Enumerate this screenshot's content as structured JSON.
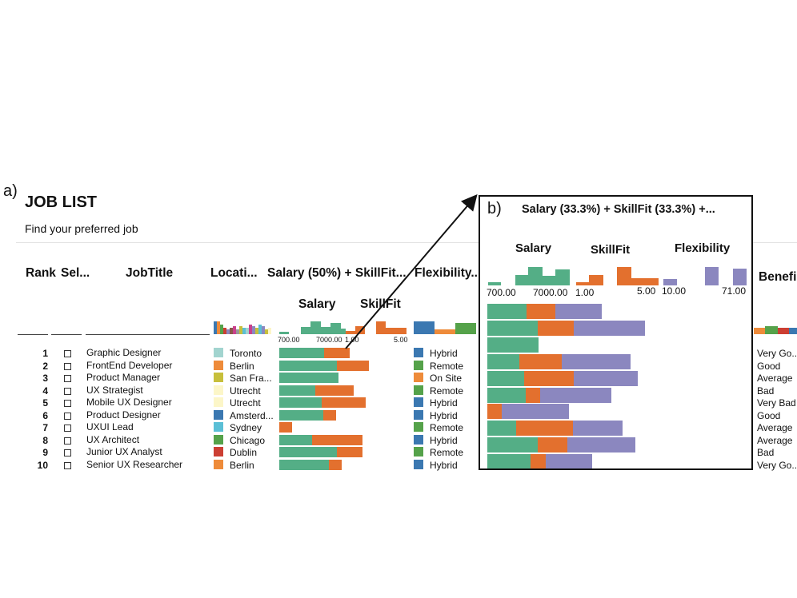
{
  "panel_a": "a)",
  "panel_b": "b)",
  "title": "JOB LIST",
  "subtitle": "Find your preferred job",
  "columns": {
    "rank": "Rank",
    "select": "Sel...",
    "jobtitle": "JobTitle",
    "location": "Locati...",
    "score": "Salary (50%) + SkillFit...",
    "flexibility": "Flexibility...",
    "benefits": "Benefi"
  },
  "sub_labels": {
    "salary": "Salary",
    "skillfit": "SkillFit"
  },
  "ticks": {
    "salary_min": "700.00",
    "salary_max": "7000.00",
    "skill_min": "1.00",
    "skill_max": "5.00"
  },
  "zoom": {
    "title": "Salary (33.3%) + SkillFit (33.3%) +...",
    "salary": "Salary",
    "skillfit": "SkillFit",
    "flexibility": "Flexibility",
    "ticks": {
      "salary_min": "700.00",
      "salary_max": "7000.00",
      "skill_min": "1.00",
      "skill_max": "5.00",
      "flex_min": "10.00",
      "flex_max": "71.00"
    }
  },
  "colors": {
    "salary": "#54ae86",
    "skillfit": "#e3702e",
    "flexibility": "#8b87bf",
    "hybrid": "#3b78b1",
    "remote": "#55a24a",
    "onsite": "#ee8b3a"
  },
  "jobs": [
    {
      "rank": "1",
      "title": "Graphic Designer",
      "location": "Toronto",
      "loc_color": "#a2d4cf",
      "flex": "Hybrid",
      "flex_color": "#3b78b1",
      "benefit": "Very Go...",
      "salary": 0.53,
      "skill": 0.41,
      "zflex": 0.53
    },
    {
      "rank": "2",
      "title": "FrontEnd Developer",
      "location": "Berlin",
      "loc_color": "#ee8b3a",
      "flex": "Remote",
      "flex_color": "#55a24a",
      "benefit": "Good",
      "salary": 0.69,
      "skill": 0.51,
      "zflex": 0.81
    },
    {
      "rank": "3",
      "title": "Product Manager",
      "location": "San Fra...",
      "loc_color": "#c7bf3b",
      "flex": "On Site",
      "flex_color": "#ee8b3a",
      "benefit": "Average",
      "salary": 0.7,
      "skill": 0.0,
      "zflex": 0.0
    },
    {
      "rank": "4",
      "title": "UX Strategist",
      "location": "Utrecht",
      "loc_color": "#fcf6c8",
      "flex": "Remote",
      "flex_color": "#55a24a",
      "benefit": "Bad",
      "salary": 0.43,
      "skill": 0.61,
      "zflex": 0.78
    },
    {
      "rank": "5",
      "title": "Mobile UX Designer",
      "location": "Utrecht",
      "loc_color": "#fcf6c8",
      "flex": "Hybrid",
      "flex_color": "#3b78b1",
      "benefit": "Very Bad",
      "salary": 0.5,
      "skill": 0.71,
      "zflex": 0.72
    },
    {
      "rank": "6",
      "title": "Product Designer",
      "location": "Amsterd...",
      "loc_color": "#3b78b1",
      "flex": "Hybrid",
      "flex_color": "#3b78b1",
      "benefit": "Good",
      "salary": 0.52,
      "skill": 0.21,
      "zflex": 0.81
    },
    {
      "rank": "7",
      "title": "UXUI Lead",
      "location": "Sydney",
      "loc_color": "#5bbfd6",
      "flex": "Remote",
      "flex_color": "#55a24a",
      "benefit": "Average",
      "salary": 0.0,
      "skill": 0.21,
      "zflex": 0.76
    },
    {
      "rank": "8",
      "title": "UX Architect",
      "location": "Chicago",
      "loc_color": "#55a24a",
      "flex": "Hybrid",
      "flex_color": "#3b78b1",
      "benefit": "Average",
      "salary": 0.39,
      "skill": 0.81,
      "zflex": 0.56
    },
    {
      "rank": "9",
      "title": "Junior UX Analyst",
      "location": "Dublin",
      "loc_color": "#cc3f33",
      "flex": "Remote",
      "flex_color": "#55a24a",
      "benefit": "Bad",
      "salary": 0.69,
      "skill": 0.41,
      "zflex": 0.78
    },
    {
      "rank": "10",
      "title": "Senior UX Researcher",
      "location": "Berlin",
      "loc_color": "#ee8b3a",
      "flex": "Hybrid",
      "flex_color": "#3b78b1",
      "benefit": "Very Go...",
      "salary": 0.59,
      "skill": 0.21,
      "zflex": 0.53
    }
  ]
}
